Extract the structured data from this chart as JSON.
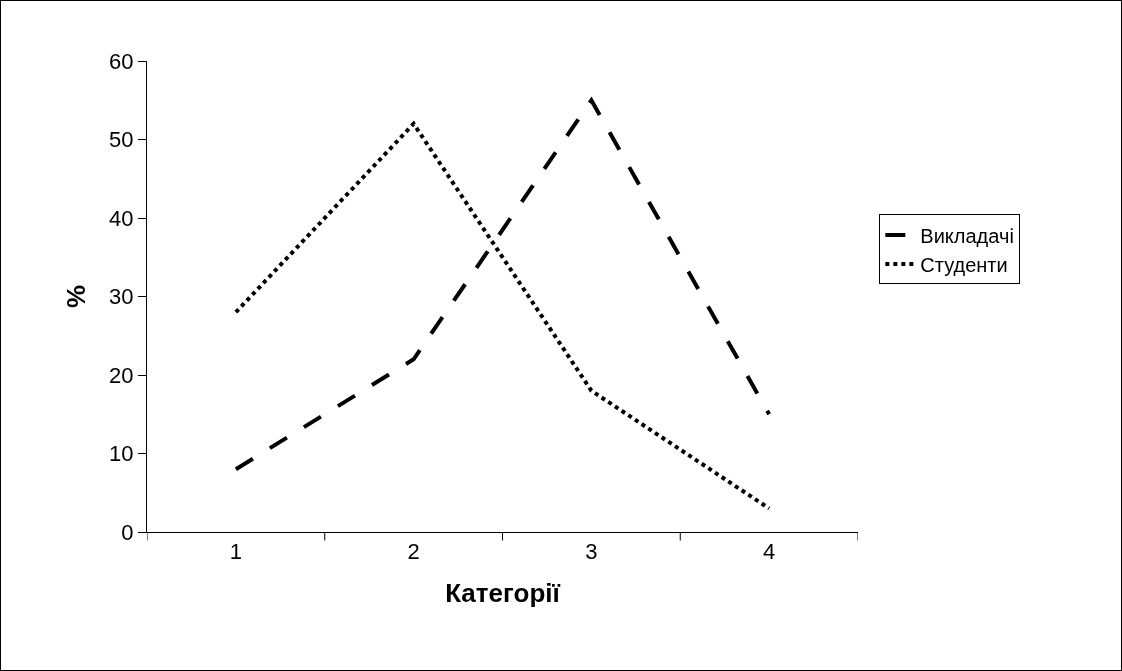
{
  "chart_data": {
    "type": "line",
    "xlabel": "Категорії",
    "ylabel": "%",
    "categories": [
      "1",
      "2",
      "3",
      "4"
    ],
    "series": [
      {
        "name": "Викладачі",
        "color": "#000000",
        "line_style": "dashed",
        "values": [
          8,
          22,
          55,
          15
        ]
      },
      {
        "name": "Студенти",
        "color": "#000000",
        "line_style": "dotted",
        "values": [
          28,
          52,
          18,
          3
        ]
      }
    ],
    "ylim": [
      0,
      60
    ],
    "yticks": [
      0,
      10,
      20,
      30,
      40,
      50,
      60
    ],
    "grid": false,
    "legend": "right",
    "marker": "none"
  }
}
